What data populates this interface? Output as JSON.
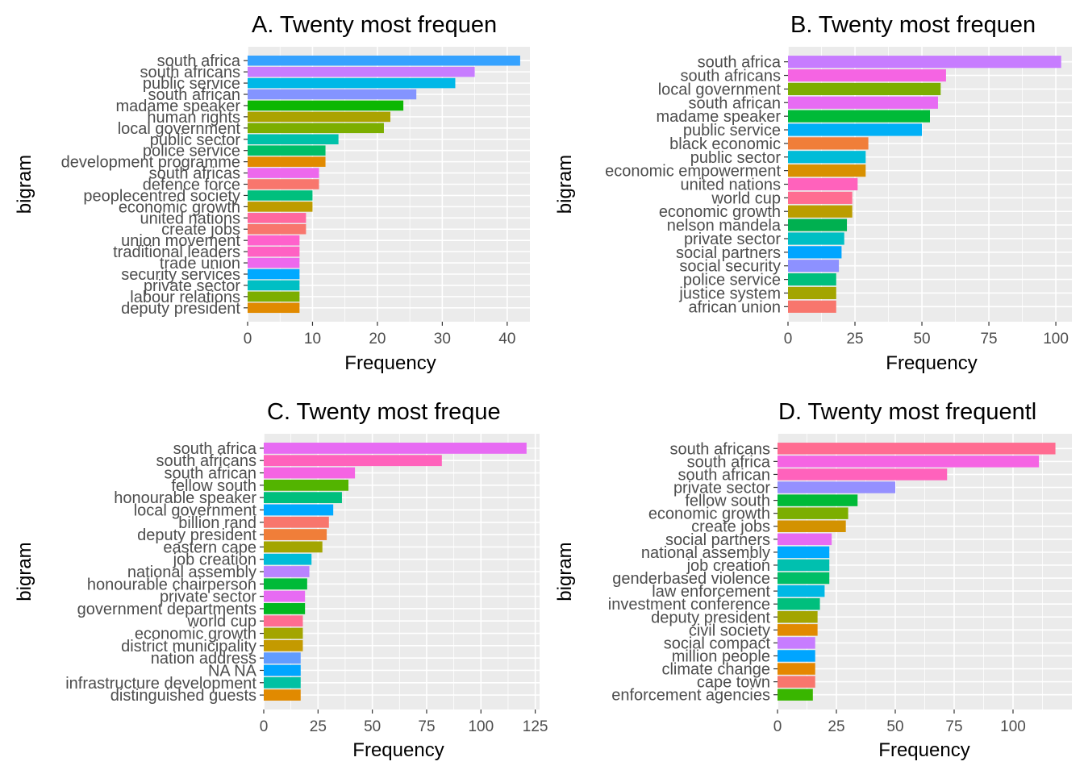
{
  "chart_data": [
    {
      "panel": "A",
      "type": "bar",
      "orientation": "horizontal",
      "title": "A. Twenty most frequen",
      "xlabel": "Frequency",
      "ylabel": "bigram",
      "xlim": [
        0,
        43.5
      ],
      "x_ticks": [
        "0",
        "10",
        "20",
        "30",
        "40"
      ],
      "grid": true,
      "categories": [
        "south africa",
        "south africans",
        "public service",
        "south african",
        "madame speaker",
        "human rights",
        "local government",
        "public sector",
        "police service",
        "development programme",
        "south africas",
        "defence force",
        "peoplecentred society",
        "economic growth",
        "united nations",
        "create jobs",
        "union movement",
        "traditional leaders",
        "trade union",
        "security services",
        "private sector",
        "labour relations",
        "deputy president"
      ],
      "values": [
        42,
        35,
        32,
        26,
        24,
        22,
        21,
        14,
        12,
        12,
        11,
        11,
        10,
        10,
        9,
        9,
        8,
        8,
        8,
        8,
        8,
        8,
        8
      ],
      "colors": [
        "#35A2FF",
        "#C77CFF",
        "#00B8E7",
        "#8494FF",
        "#0CB702",
        "#ABA300",
        "#7CAE00",
        "#00C1A9",
        "#00BE67",
        "#E18A00",
        "#ED68ED",
        "#F8766D",
        "#00BF7D",
        "#BE9C00",
        "#FF689F",
        "#F8766D",
        "#FF61CC",
        "#FF61C3",
        "#ED68ED",
        "#00A9FF",
        "#00BFC4",
        "#7CAE00",
        "#E18A00"
      ]
    },
    {
      "panel": "B",
      "type": "bar",
      "orientation": "horizontal",
      "title": "B. Twenty most frequen",
      "xlabel": "Frequency",
      "ylabel": "bigram",
      "xlim": [
        0,
        106
      ],
      "x_ticks": [
        "0",
        "25",
        "50",
        "75",
        "100"
      ],
      "grid": true,
      "categories": [
        "south africa",
        "south africans",
        "local government",
        "south african",
        "madame speaker",
        "public service",
        "black economic",
        "public sector",
        "economic empowerment",
        "united nations",
        "world cup",
        "economic growth",
        "nelson mandela",
        "private sector",
        "social partners",
        "social security",
        "police service",
        "justice system",
        "african union"
      ],
      "values": [
        102,
        59,
        57,
        56,
        53,
        50,
        30,
        29,
        29,
        26,
        24,
        24,
        22,
        21,
        20,
        19,
        18,
        18,
        18
      ],
      "colors": [
        "#C77CFF",
        "#F564E3",
        "#7CAE00",
        "#E76BF3",
        "#00BA38",
        "#00B0F6",
        "#F07E39",
        "#00BCD8",
        "#D89000",
        "#FF62BC",
        "#FF6C91",
        "#BB9D00",
        "#00B050",
        "#00BFC4",
        "#00A5FF",
        "#8D91FF",
        "#00BF7D",
        "#A3A500",
        "#F8766D"
      ]
    },
    {
      "panel": "C",
      "type": "bar",
      "orientation": "horizontal",
      "title": "C. Twenty most freque",
      "xlabel": "Frequency",
      "ylabel": "bigram",
      "xlim": [
        0,
        127
      ],
      "x_ticks": [
        "0",
        "25",
        "50",
        "75",
        "100",
        "125"
      ],
      "grid": true,
      "categories": [
        "south africa",
        "south africans",
        "south african",
        "fellow south",
        "honourable speaker",
        "local government",
        "billion rand",
        "deputy president",
        "eastern cape",
        "job creation",
        "national assembly",
        "honourable chairperson",
        "private sector",
        "government departments",
        "world cup",
        "economic growth",
        "district municipality",
        "nation address",
        "NA NA",
        "infrastructure development",
        "distinguished guests"
      ],
      "values": [
        121,
        82,
        42,
        39,
        36,
        32,
        30,
        29,
        27,
        22,
        21,
        20,
        19,
        19,
        18,
        18,
        18,
        17,
        17,
        17,
        17
      ],
      "colors": [
        "#E76BF3",
        "#FF62BC",
        "#F564E3",
        "#53B400",
        "#00BF7D",
        "#00A9FF",
        "#F8766D",
        "#F07E39",
        "#A3A500",
        "#00BCD8",
        "#B983FF",
        "#00BA38",
        "#E76BF3",
        "#00B81F",
        "#FF6C91",
        "#A3A500",
        "#C49A00",
        "#619CFF",
        "#00A5FF",
        "#00C1A3",
        "#E18A00"
      ]
    },
    {
      "panel": "D",
      "type": "bar",
      "orientation": "horizontal",
      "title": "D. Twenty most frequentl",
      "xlabel": "Frequency",
      "ylabel": "bigram",
      "xlim": [
        0,
        125
      ],
      "x_ticks": [
        "0",
        "25",
        "50",
        "75",
        "100"
      ],
      "grid": true,
      "categories": [
        "south africans",
        "south africa",
        "south african",
        "private sector",
        "fellow south",
        "economic growth",
        "create jobs",
        "social partners",
        "national assembly",
        "job creation",
        "genderbased violence",
        "law enforcement",
        "investment conference",
        "deputy president",
        "civil society",
        "social compact",
        "million people",
        "climate change",
        "cape town",
        "enforcement agencies"
      ],
      "values": [
        118,
        111,
        72,
        50,
        34,
        30,
        29,
        23,
        22,
        22,
        22,
        20,
        18,
        17,
        17,
        16,
        16,
        16,
        16,
        15
      ],
      "colors": [
        "#FF6C91",
        "#F564E3",
        "#FF62BC",
        "#9590FF",
        "#00BA38",
        "#7CAE00",
        "#D39200",
        "#E76BF3",
        "#00A9FF",
        "#00C0AF",
        "#00BE67",
        "#00B8E5",
        "#00BF7D",
        "#A3A500",
        "#E18A00",
        "#C77CFF",
        "#00A5FF",
        "#E58700",
        "#F8766D",
        "#39B600"
      ]
    }
  ]
}
